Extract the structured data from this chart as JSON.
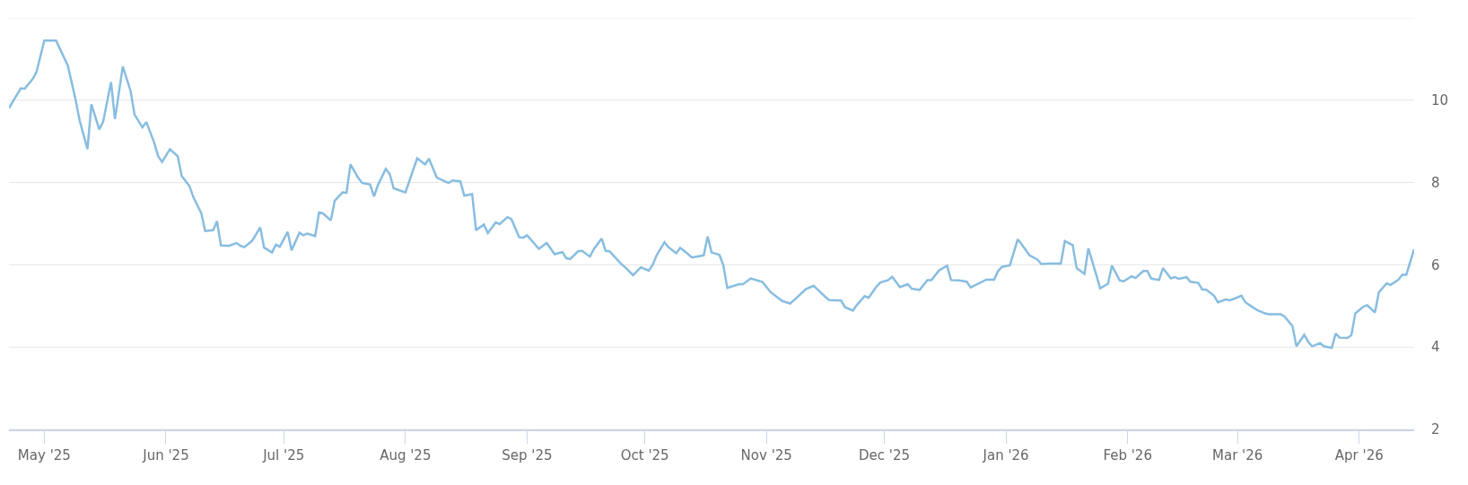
{
  "chart_data": {
    "type": "line",
    "grid": "y",
    "marker": "none",
    "line_style": "solid",
    "xlim": [
      "2025-04-22",
      "2026-04-15"
    ],
    "xticks": [
      {
        "value": "2025-05-01",
        "label": "May '25"
      },
      {
        "value": "2025-06-01",
        "label": "Jun '25"
      },
      {
        "value": "2025-07-01",
        "label": "Jul '25"
      },
      {
        "value": "2025-08-01",
        "label": "Aug '25"
      },
      {
        "value": "2025-09-01",
        "label": "Sep '25"
      },
      {
        "value": "2025-10-01",
        "label": "Oct '25"
      },
      {
        "value": "2025-11-01",
        "label": "Nov '25"
      },
      {
        "value": "2025-12-01",
        "label": "Dec '25"
      },
      {
        "value": "2026-01-01",
        "label": "Jan '26"
      },
      {
        "value": "2026-02-01",
        "label": "Feb '26"
      },
      {
        "value": "2026-03-01",
        "label": "Mar '26"
      },
      {
        "value": "2026-04-01",
        "label": "Apr '26"
      }
    ],
    "ylim": [
      2,
      12
    ],
    "yticks": [
      2,
      4,
      6,
      8,
      10,
      {
        "value": 12,
        "label": null
      }
    ],
    "series": [
      {
        "color": "#88bde0",
        "x": [
          "2025-04-22",
          "2025-04-25",
          "2025-04-26",
          "2025-04-28",
          "2025-04-29",
          "2025-05-01",
          "2025-05-04",
          "2025-05-07",
          "2025-05-09",
          "2025-05-10",
          "2025-05-12",
          "2025-05-13",
          "2025-05-15",
          "2025-05-16",
          "2025-05-18",
          "2025-05-19",
          "2025-05-21",
          "2025-05-23",
          "2025-05-24",
          "2025-05-26",
          "2025-05-27",
          "2025-05-29",
          "2025-05-30",
          "2025-05-31",
          "2025-06-02",
          "2025-06-04",
          "2025-06-05",
          "2025-06-07",
          "2025-06-08",
          "2025-06-10",
          "2025-06-11",
          "2025-06-13",
          "2025-06-14",
          "2025-06-15",
          "2025-06-17",
          "2025-06-19",
          "2025-06-20",
          "2025-06-21",
          "2025-06-23",
          "2025-06-25",
          "2025-06-26",
          "2025-06-28",
          "2025-06-29",
          "2025-06-30",
          "2025-07-02",
          "2025-07-03",
          "2025-07-05",
          "2025-07-06",
          "2025-07-07",
          "2025-07-09",
          "2025-07-10",
          "2025-07-11",
          "2025-07-13",
          "2025-07-14",
          "2025-07-16",
          "2025-07-17",
          "2025-07-18",
          "2025-07-20",
          "2025-07-21",
          "2025-07-23",
          "2025-07-24",
          "2025-07-25",
          "2025-07-27",
          "2025-07-28",
          "2025-07-29",
          "2025-08-01",
          "2025-08-04",
          "2025-08-06",
          "2025-08-07",
          "2025-08-09",
          "2025-08-12",
          "2025-08-13",
          "2025-08-15",
          "2025-08-16",
          "2025-08-18",
          "2025-08-19",
          "2025-08-21",
          "2025-08-22",
          "2025-08-24",
          "2025-08-25",
          "2025-08-27",
          "2025-08-28",
          "2025-08-30",
          "2025-08-31",
          "2025-09-01",
          "2025-09-04",
          "2025-09-06",
          "2025-09-08",
          "2025-09-10",
          "2025-09-11",
          "2025-09-12",
          "2025-09-14",
          "2025-09-15",
          "2025-09-17",
          "2025-09-18",
          "2025-09-20",
          "2025-09-21",
          "2025-09-22",
          "2025-09-25",
          "2025-09-26",
          "2025-09-28",
          "2025-09-30",
          "2025-10-02",
          "2025-10-03",
          "2025-10-04",
          "2025-10-06",
          "2025-10-07",
          "2025-10-09",
          "2025-10-10",
          "2025-10-11",
          "2025-10-13",
          "2025-10-16",
          "2025-10-17",
          "2025-10-18",
          "2025-10-20",
          "2025-10-21",
          "2025-10-22",
          "2025-10-25",
          "2025-10-26",
          "2025-10-28",
          "2025-10-30",
          "2025-10-31",
          "2025-11-02",
          "2025-11-05",
          "2025-11-07",
          "2025-11-08",
          "2025-11-11",
          "2025-11-13",
          "2025-11-14",
          "2025-11-16",
          "2025-11-17",
          "2025-11-20",
          "2025-11-21",
          "2025-11-23",
          "2025-11-24",
          "2025-11-26",
          "2025-11-27",
          "2025-11-29",
          "2025-11-30",
          "2025-12-02",
          "2025-12-03",
          "2025-12-05",
          "2025-12-07",
          "2025-12-08",
          "2025-12-10",
          "2025-12-12",
          "2025-12-13",
          "2025-12-15",
          "2025-12-17",
          "2025-12-18",
          "2025-12-20",
          "2025-12-22",
          "2025-12-23",
          "2025-12-27",
          "2025-12-29",
          "2025-12-30",
          "2025-12-31",
          "2026-01-02",
          "2026-01-04",
          "2026-01-05",
          "2026-01-07",
          "2026-01-09",
          "2026-01-10",
          "2026-01-12",
          "2026-01-15",
          "2026-01-16",
          "2026-01-18",
          "2026-01-19",
          "2026-01-21",
          "2026-01-22",
          "2026-01-24",
          "2026-01-25",
          "2026-01-27",
          "2026-01-28",
          "2026-01-30",
          "2026-01-31",
          "2026-02-02",
          "2026-02-03",
          "2026-02-05",
          "2026-02-06",
          "2026-02-07",
          "2026-02-09",
          "2026-02-10",
          "2026-02-12",
          "2026-02-13",
          "2026-02-14",
          "2026-02-16",
          "2026-02-17",
          "2026-02-19",
          "2026-02-20",
          "2026-02-21",
          "2026-02-23",
          "2026-02-24",
          "2026-02-26",
          "2026-02-27",
          "2026-02-28",
          "2026-03-02",
          "2026-03-03",
          "2026-03-05",
          "2026-03-06",
          "2026-03-08",
          "2026-03-09",
          "2026-03-12",
          "2026-03-13",
          "2026-03-15",
          "2026-03-16",
          "2026-03-18",
          "2026-03-19",
          "2026-03-20",
          "2026-03-22",
          "2026-03-23",
          "2026-03-25",
          "2026-03-26",
          "2026-03-27",
          "2026-03-29",
          "2026-03-30",
          "2026-03-31",
          "2026-04-02",
          "2026-04-03",
          "2026-04-05",
          "2026-04-06",
          "2026-04-08",
          "2026-04-09",
          "2026-04-11",
          "2026-04-12",
          "2026-04-13",
          "2026-04-15"
        ],
        "values": [
          9.81,
          10.29,
          10.28,
          10.51,
          10.68,
          11.45,
          11.45,
          10.84,
          10.0,
          9.51,
          8.81,
          9.9,
          9.29,
          9.48,
          10.44,
          9.54,
          10.82,
          10.22,
          9.65,
          9.34,
          9.47,
          8.97,
          8.64,
          8.5,
          8.81,
          8.64,
          8.16,
          7.91,
          7.64,
          7.25,
          6.82,
          6.84,
          7.06,
          6.47,
          6.46,
          6.53,
          6.46,
          6.43,
          6.59,
          6.91,
          6.42,
          6.3,
          6.49,
          6.44,
          6.8,
          6.35,
          6.78,
          6.72,
          6.76,
          6.7,
          7.27,
          7.25,
          7.08,
          7.56,
          7.76,
          7.75,
          8.44,
          8.11,
          7.99,
          7.95,
          7.66,
          7.94,
          8.33,
          8.21,
          7.86,
          7.76,
          8.59,
          8.44,
          8.58,
          8.12,
          7.99,
          8.05,
          8.03,
          7.68,
          7.72,
          6.84,
          6.98,
          6.77,
          7.03,
          6.99,
          7.16,
          7.11,
          6.67,
          6.66,
          6.72,
          6.39,
          6.53,
          6.26,
          6.31,
          6.16,
          6.14,
          6.33,
          6.34,
          6.2,
          6.38,
          6.64,
          6.34,
          6.33,
          6.02,
          5.94,
          5.75,
          5.94,
          5.86,
          6.0,
          6.23,
          6.55,
          6.43,
          6.28,
          6.41,
          6.34,
          6.18,
          6.23,
          6.69,
          6.3,
          6.24,
          5.99,
          5.44,
          5.53,
          5.53,
          5.67,
          5.61,
          5.58,
          5.34,
          5.12,
          5.06,
          5.14,
          5.41,
          5.49,
          5.4,
          5.22,
          5.14,
          5.13,
          4.97,
          4.89,
          5.02,
          5.24,
          5.2,
          5.47,
          5.57,
          5.63,
          5.71,
          5.46,
          5.53,
          5.42,
          5.39,
          5.63,
          5.63,
          5.87,
          5.98,
          5.63,
          5.62,
          5.59,
          5.45,
          5.64,
          5.64,
          5.85,
          5.95,
          5.99,
          6.62,
          6.5,
          6.23,
          6.13,
          6.02,
          6.03,
          6.03,
          6.58,
          6.48,
          5.92,
          5.78,
          6.4,
          5.76,
          5.43,
          5.54,
          5.98,
          5.62,
          5.6,
          5.72,
          5.68,
          5.85,
          5.85,
          5.67,
          5.63,
          5.92,
          5.67,
          5.7,
          5.66,
          5.7,
          5.59,
          5.56,
          5.4,
          5.4,
          5.25,
          5.09,
          5.16,
          5.14,
          5.17,
          5.25,
          5.09,
          4.96,
          4.9,
          4.82,
          4.8,
          4.8,
          4.74,
          4.51,
          4.02,
          4.3,
          4.13,
          4.02,
          4.1,
          4.02,
          3.98,
          4.33,
          4.23,
          4.22,
          4.29,
          4.82,
          4.98,
          5.02,
          4.84,
          5.33,
          5.55,
          5.51,
          5.64,
          5.76,
          5.76,
          6.38
        ]
      }
    ]
  }
}
